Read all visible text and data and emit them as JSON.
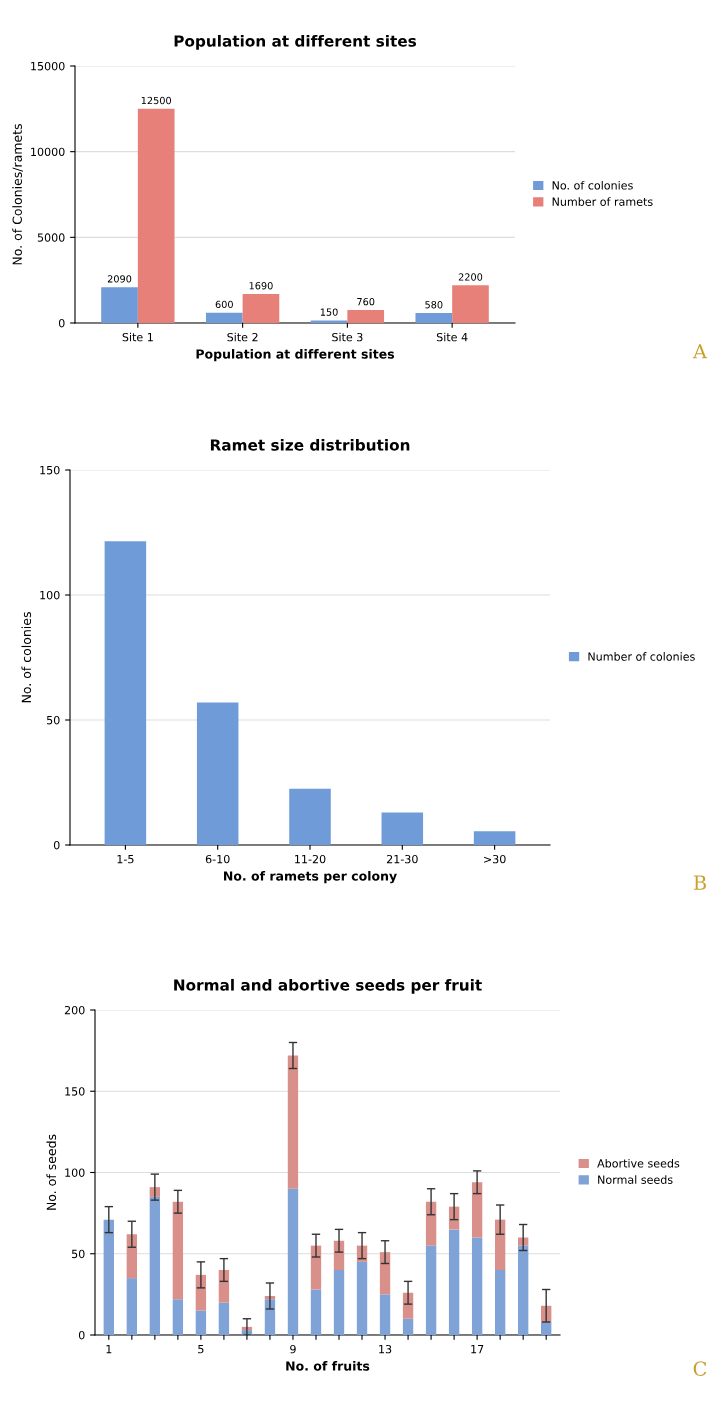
{
  "chart_data": [
    {
      "type": "bar",
      "title": "Population at different sites",
      "xlabel": "Population at different sites",
      "ylabel": "No. of Colonies/ramets",
      "categories": [
        "Site 1",
        "Site 2",
        "Site 3",
        "Site 4"
      ],
      "series": [
        {
          "name": "No. of colonies",
          "color": "#6f9bd8",
          "values": [
            2090,
            600,
            150,
            580
          ]
        },
        {
          "name": "Number of ramets",
          "color": "#e8807a",
          "values": [
            12500,
            1690,
            760,
            2200
          ]
        }
      ],
      "ylim": [
        0,
        15000
      ],
      "yticks": [
        0,
        5000,
        10000,
        15000
      ],
      "grid": "y",
      "legend": "right",
      "data_labels": true,
      "annotations": [
        "A"
      ]
    },
    {
      "type": "bar",
      "title": "Ramet size distribution",
      "xlabel": "No. of ramets per colony",
      "ylabel": "No. of colonies",
      "categories": [
        "1-5",
        "6-10",
        "11-20",
        "21-30",
        ">30"
      ],
      "series": [
        {
          "name": "Number of colonies",
          "color": "#6f9bd8",
          "values": [
            121.5,
            57,
            22.5,
            13,
            5.5
          ]
        }
      ],
      "ylim": [
        0,
        150
      ],
      "yticks": [
        0,
        50,
        100,
        150
      ],
      "grid": "y",
      "legend": "right",
      "annotations": [
        "B"
      ]
    },
    {
      "type": "bar",
      "stacked": true,
      "title": "Normal and abortive seeds per fruit",
      "xlabel": "No. of fruits",
      "ylabel": "No. of seeds",
      "categories": [
        "1",
        null,
        null,
        null,
        "5",
        null,
        null,
        null,
        "9",
        null,
        null,
        null,
        "13",
        null,
        null,
        null,
        "17",
        null,
        null,
        null
      ],
      "series": [
        {
          "name": "Normal seeds",
          "color": "#7fa3d6",
          "values": [
            71,
            35,
            85,
            22,
            15,
            20,
            3,
            22,
            90,
            28,
            40,
            45,
            25,
            10,
            55,
            65,
            60,
            40,
            55,
            8
          ]
        },
        {
          "name": "Abortive seeds",
          "color": "#d9908a",
          "values": [
            0,
            27,
            6,
            60,
            22,
            20,
            2,
            2,
            82,
            27,
            18,
            10,
            26,
            16,
            27,
            14,
            34,
            31,
            5,
            10
          ],
          "errors": [
            8,
            8,
            8,
            7,
            8,
            7,
            5,
            8,
            8,
            7,
            7,
            8,
            7,
            7,
            8,
            8,
            7,
            9,
            8,
            10
          ]
        }
      ],
      "ylim": [
        0,
        200
      ],
      "yticks": [
        0,
        50,
        100,
        150,
        200
      ],
      "grid": "y",
      "legend": "right",
      "annotations": [
        "C"
      ]
    }
  ]
}
